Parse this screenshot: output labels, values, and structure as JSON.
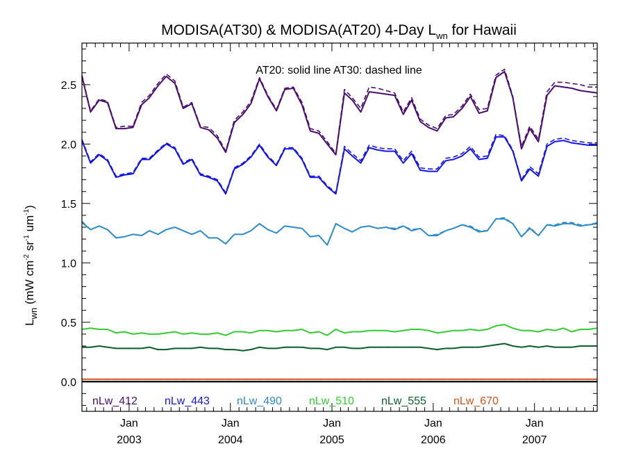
{
  "chart_data": {
    "type": "line",
    "title_main": "MODISA(AT30) & MODISA(AT20) 4-Day L",
    "title_sub": "wn",
    "title_tail": " for Hawaii",
    "ylabel_main": "L",
    "ylabel_sub": "wn",
    "ylabel_units_a": " (mW cm",
    "ylabel_exp1": "-2",
    "ylabel_units_b": " sr",
    "ylabel_exp2": "-1",
    "ylabel_units_c": " um",
    "ylabel_exp3": "-1",
    "ylabel_close": ")",
    "annotation": "AT20: solid line   AT30: dashed line",
    "ylim": [
      -0.25,
      2.85
    ],
    "xlim": [
      "2002-07-15",
      "2007-08-15"
    ],
    "yticks": [
      {
        "v": 0.0,
        "label": "0.0"
      },
      {
        "v": 0.5,
        "label": "0.5"
      },
      {
        "v": 1.0,
        "label": "1.0"
      },
      {
        "v": 1.5,
        "label": "1.5"
      },
      {
        "v": 2.0,
        "label": "2.0"
      },
      {
        "v": 2.5,
        "label": "2.5"
      }
    ],
    "xticks": [
      {
        "date": "2003-01-01",
        "month": "Jan",
        "year": "2003"
      },
      {
        "date": "2004-01-01",
        "month": "Jan",
        "year": "2004"
      },
      {
        "date": "2005-01-01",
        "month": "Jan",
        "year": "2005"
      },
      {
        "date": "2006-01-01",
        "month": "Jan",
        "year": "2006"
      },
      {
        "date": "2007-01-01",
        "month": "Jan",
        "year": "2007"
      }
    ],
    "zero_line": true,
    "legend_position": "bottom",
    "x": [
      "2002-07-15",
      "2002-08-15",
      "2002-09-15",
      "2002-10-15",
      "2002-11-15",
      "2002-12-15",
      "2003-01-15",
      "2003-02-15",
      "2003-03-15",
      "2003-04-15",
      "2003-05-15",
      "2003-06-15",
      "2003-07-15",
      "2003-08-15",
      "2003-09-15",
      "2003-10-15",
      "2003-11-15",
      "2003-12-15",
      "2004-01-15",
      "2004-02-15",
      "2004-03-15",
      "2004-04-15",
      "2004-05-15",
      "2004-06-15",
      "2004-07-15",
      "2004-08-15",
      "2004-09-15",
      "2004-10-15",
      "2004-11-15",
      "2004-12-15",
      "2005-01-15",
      "2005-02-15",
      "2005-03-15",
      "2005-04-15",
      "2005-05-15",
      "2005-06-15",
      "2005-07-15",
      "2005-08-15",
      "2005-09-15",
      "2005-10-15",
      "2005-11-15",
      "2005-12-15",
      "2006-01-15",
      "2006-02-15",
      "2006-03-15",
      "2006-04-15",
      "2006-05-15",
      "2006-06-15",
      "2006-07-15",
      "2006-08-15",
      "2006-09-15",
      "2006-10-15",
      "2006-11-15",
      "2006-12-15",
      "2007-01-15",
      "2007-02-15",
      "2007-03-15",
      "2007-04-15",
      "2007-05-15",
      "2007-06-15",
      "2007-07-15",
      "2007-08-15"
    ],
    "series": [
      {
        "name": "nLw_412",
        "color": "#4b0c6f",
        "values": [
          2.57,
          2.27,
          2.37,
          2.35,
          2.13,
          2.13,
          2.14,
          2.33,
          2.39,
          2.49,
          2.57,
          2.51,
          2.3,
          2.34,
          2.14,
          2.12,
          2.05,
          1.93,
          2.18,
          2.25,
          2.34,
          2.55,
          2.4,
          2.28,
          2.46,
          2.47,
          2.33,
          2.11,
          2.09,
          2.0,
          1.91,
          2.43,
          2.37,
          2.27,
          2.44,
          2.43,
          2.42,
          2.41,
          2.25,
          2.37,
          2.19,
          2.14,
          2.11,
          2.22,
          2.23,
          2.3,
          2.4,
          2.26,
          2.28,
          2.56,
          2.61,
          2.39,
          1.96,
          2.13,
          2.02,
          2.41,
          2.49,
          2.48,
          2.47,
          2.45,
          2.44,
          2.43
        ],
        "values_dashed": [
          2.58,
          2.28,
          2.38,
          2.36,
          2.14,
          2.15,
          2.15,
          2.35,
          2.41,
          2.51,
          2.59,
          2.53,
          2.31,
          2.35,
          2.15,
          2.14,
          2.07,
          1.94,
          2.2,
          2.27,
          2.36,
          2.56,
          2.41,
          2.29,
          2.47,
          2.48,
          2.35,
          2.13,
          2.11,
          2.02,
          1.92,
          2.46,
          2.39,
          2.3,
          2.48,
          2.47,
          2.45,
          2.43,
          2.27,
          2.39,
          2.21,
          2.16,
          2.13,
          2.24,
          2.25,
          2.32,
          2.42,
          2.29,
          2.3,
          2.58,
          2.63,
          2.4,
          1.98,
          2.15,
          2.04,
          2.44,
          2.52,
          2.52,
          2.51,
          2.5,
          2.48,
          2.48
        ]
      },
      {
        "name": "nLw_443",
        "color": "#1414e6",
        "values": [
          2.03,
          1.84,
          1.91,
          1.86,
          1.72,
          1.74,
          1.75,
          1.87,
          1.87,
          1.94,
          2.0,
          1.96,
          1.83,
          1.87,
          1.74,
          1.72,
          1.69,
          1.58,
          1.79,
          1.83,
          1.89,
          1.99,
          1.89,
          1.82,
          1.96,
          1.96,
          1.87,
          1.72,
          1.72,
          1.64,
          1.58,
          1.96,
          1.9,
          1.84,
          1.97,
          1.95,
          1.94,
          1.94,
          1.84,
          1.92,
          1.78,
          1.77,
          1.77,
          1.86,
          1.87,
          1.9,
          1.96,
          1.87,
          1.88,
          2.06,
          2.06,
          1.94,
          1.69,
          1.79,
          1.73,
          1.98,
          2.02,
          2.03,
          2.01,
          2.0,
          1.99,
          1.99
        ],
        "values_dashed": [
          2.04,
          1.85,
          1.92,
          1.87,
          1.73,
          1.75,
          1.76,
          1.88,
          1.88,
          1.95,
          2.01,
          1.97,
          1.84,
          1.88,
          1.75,
          1.73,
          1.7,
          1.59,
          1.8,
          1.84,
          1.9,
          2.0,
          1.9,
          1.83,
          1.97,
          1.97,
          1.88,
          1.73,
          1.73,
          1.65,
          1.59,
          1.98,
          1.92,
          1.86,
          1.99,
          1.97,
          1.96,
          1.96,
          1.86,
          1.94,
          1.8,
          1.79,
          1.79,
          1.88,
          1.89,
          1.92,
          1.98,
          1.89,
          1.9,
          2.08,
          2.07,
          1.95,
          1.7,
          1.81,
          1.75,
          2.0,
          2.04,
          2.05,
          2.03,
          2.02,
          2.01,
          2.01
        ]
      },
      {
        "name": "nLw_490",
        "color": "#2e8bc9",
        "values": [
          1.34,
          1.28,
          1.31,
          1.28,
          1.21,
          1.22,
          1.24,
          1.23,
          1.27,
          1.24,
          1.28,
          1.3,
          1.27,
          1.24,
          1.27,
          1.21,
          1.21,
          1.16,
          1.24,
          1.24,
          1.27,
          1.33,
          1.28,
          1.25,
          1.31,
          1.3,
          1.29,
          1.22,
          1.23,
          1.15,
          1.33,
          1.29,
          1.26,
          1.3,
          1.31,
          1.29,
          1.3,
          1.28,
          1.31,
          1.27,
          1.29,
          1.23,
          1.23,
          1.27,
          1.29,
          1.32,
          1.3,
          1.26,
          1.27,
          1.37,
          1.37,
          1.33,
          1.22,
          1.29,
          1.23,
          1.32,
          1.31,
          1.33,
          1.33,
          1.31,
          1.32,
          1.33
        ],
        "values_dashed": [
          1.35,
          1.28,
          1.31,
          1.28,
          1.21,
          1.22,
          1.24,
          1.23,
          1.27,
          1.24,
          1.28,
          1.3,
          1.27,
          1.24,
          1.27,
          1.21,
          1.21,
          1.16,
          1.24,
          1.24,
          1.27,
          1.33,
          1.28,
          1.25,
          1.31,
          1.3,
          1.29,
          1.22,
          1.23,
          1.15,
          1.33,
          1.29,
          1.26,
          1.3,
          1.31,
          1.29,
          1.3,
          1.29,
          1.31,
          1.28,
          1.29,
          1.23,
          1.24,
          1.27,
          1.29,
          1.32,
          1.31,
          1.27,
          1.27,
          1.37,
          1.38,
          1.33,
          1.22,
          1.3,
          1.23,
          1.32,
          1.32,
          1.34,
          1.34,
          1.32,
          1.32,
          1.34
        ]
      },
      {
        "name": "nLw_510",
        "color": "#33cc33",
        "values": [
          0.44,
          0.45,
          0.44,
          0.44,
          0.41,
          0.42,
          0.4,
          0.41,
          0.4,
          0.4,
          0.41,
          0.42,
          0.4,
          0.41,
          0.4,
          0.4,
          0.41,
          0.39,
          0.42,
          0.42,
          0.41,
          0.43,
          0.43,
          0.42,
          0.43,
          0.43,
          0.44,
          0.41,
          0.42,
          0.39,
          0.44,
          0.41,
          0.42,
          0.42,
          0.43,
          0.43,
          0.43,
          0.42,
          0.43,
          0.44,
          0.44,
          0.43,
          0.41,
          0.42,
          0.43,
          0.43,
          0.44,
          0.43,
          0.44,
          0.47,
          0.48,
          0.45,
          0.43,
          0.43,
          0.42,
          0.44,
          0.43,
          0.45,
          0.42,
          0.44,
          0.44,
          0.45
        ],
        "values_dashed": [
          0.44,
          0.45,
          0.44,
          0.44,
          0.41,
          0.42,
          0.4,
          0.41,
          0.4,
          0.4,
          0.41,
          0.42,
          0.4,
          0.41,
          0.4,
          0.4,
          0.41,
          0.39,
          0.42,
          0.42,
          0.41,
          0.43,
          0.43,
          0.42,
          0.43,
          0.43,
          0.44,
          0.41,
          0.42,
          0.39,
          0.44,
          0.41,
          0.42,
          0.42,
          0.43,
          0.43,
          0.43,
          0.42,
          0.43,
          0.44,
          0.44,
          0.43,
          0.41,
          0.42,
          0.43,
          0.43,
          0.44,
          0.43,
          0.44,
          0.47,
          0.48,
          0.45,
          0.43,
          0.43,
          0.42,
          0.44,
          0.43,
          0.45,
          0.42,
          0.44,
          0.44,
          0.45
        ]
      },
      {
        "name": "nLw_555",
        "color": "#0b5e2a",
        "values": [
          0.29,
          0.29,
          0.3,
          0.29,
          0.28,
          0.28,
          0.28,
          0.28,
          0.29,
          0.27,
          0.27,
          0.28,
          0.28,
          0.28,
          0.29,
          0.28,
          0.28,
          0.27,
          0.27,
          0.26,
          0.27,
          0.29,
          0.28,
          0.28,
          0.29,
          0.29,
          0.29,
          0.28,
          0.28,
          0.27,
          0.29,
          0.29,
          0.28,
          0.28,
          0.29,
          0.29,
          0.29,
          0.29,
          0.29,
          0.29,
          0.29,
          0.28,
          0.27,
          0.28,
          0.28,
          0.29,
          0.29,
          0.29,
          0.3,
          0.31,
          0.32,
          0.3,
          0.29,
          0.3,
          0.29,
          0.3,
          0.29,
          0.29,
          0.29,
          0.3,
          0.3,
          0.3
        ],
        "values_dashed": [
          0.29,
          0.29,
          0.3,
          0.29,
          0.28,
          0.28,
          0.28,
          0.28,
          0.29,
          0.27,
          0.27,
          0.28,
          0.28,
          0.28,
          0.29,
          0.28,
          0.28,
          0.27,
          0.27,
          0.26,
          0.27,
          0.29,
          0.28,
          0.28,
          0.29,
          0.29,
          0.29,
          0.28,
          0.28,
          0.27,
          0.29,
          0.29,
          0.28,
          0.28,
          0.29,
          0.29,
          0.29,
          0.29,
          0.29,
          0.29,
          0.29,
          0.28,
          0.27,
          0.28,
          0.28,
          0.29,
          0.29,
          0.29,
          0.3,
          0.31,
          0.32,
          0.3,
          0.29,
          0.3,
          0.29,
          0.3,
          0.29,
          0.29,
          0.29,
          0.3,
          0.3,
          0.3
        ]
      },
      {
        "name": "nLw_670",
        "color": "#d4541b",
        "values": [
          0.02,
          0.02,
          0.02,
          0.02,
          0.02,
          0.02,
          0.02,
          0.02,
          0.02,
          0.02,
          0.02,
          0.02,
          0.02,
          0.02,
          0.02,
          0.02,
          0.02,
          0.02,
          0.02,
          0.02,
          0.02,
          0.02,
          0.02,
          0.02,
          0.02,
          0.02,
          0.02,
          0.02,
          0.02,
          0.02,
          0.02,
          0.02,
          0.02,
          0.02,
          0.02,
          0.02,
          0.02,
          0.02,
          0.02,
          0.02,
          0.02,
          0.02,
          0.02,
          0.02,
          0.02,
          0.02,
          0.02,
          0.02,
          0.02,
          0.02,
          0.02,
          0.02,
          0.02,
          0.02,
          0.02,
          0.02,
          0.02,
          0.02,
          0.02,
          0.02,
          0.02,
          0.02
        ],
        "values_dashed": [
          0.02,
          0.02,
          0.02,
          0.02,
          0.02,
          0.02,
          0.02,
          0.02,
          0.02,
          0.02,
          0.02,
          0.02,
          0.02,
          0.02,
          0.02,
          0.02,
          0.02,
          0.02,
          0.02,
          0.02,
          0.02,
          0.02,
          0.02,
          0.02,
          0.02,
          0.02,
          0.02,
          0.02,
          0.02,
          0.02,
          0.02,
          0.02,
          0.02,
          0.02,
          0.02,
          0.02,
          0.02,
          0.02,
          0.02,
          0.02,
          0.02,
          0.02,
          0.02,
          0.02,
          0.02,
          0.02,
          0.02,
          0.02,
          0.02,
          0.02,
          0.02,
          0.02,
          0.02,
          0.02,
          0.02,
          0.02,
          0.02,
          0.02,
          0.02,
          0.02,
          0.02,
          0.02
        ]
      }
    ]
  }
}
